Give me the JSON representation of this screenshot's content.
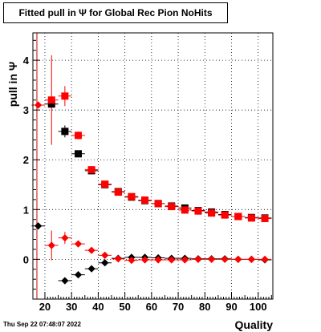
{
  "chart_data": {
    "type": "scatter",
    "title": "Fitted pull in  Ψ  for Global Rec Pion NoHits",
    "xlabel": "Quality",
    "ylabel": "pull in  Ψ",
    "xlim": [
      15.5,
      105.5
    ],
    "ylim": [
      -0.8,
      4.55
    ],
    "x_ticks": [
      20,
      30,
      40,
      50,
      60,
      70,
      80,
      90,
      100
    ],
    "y_ticks": [
      0,
      1,
      2,
      3,
      4
    ],
    "grid": true,
    "vertical_line_x": 17,
    "series": [
      {
        "marker": "square",
        "color": "#000000",
        "x": [
          22.5,
          27.5,
          32.5,
          37.5,
          42.5,
          47.5,
          52.5,
          57.5,
          62.5,
          67.5,
          72.5,
          77.5,
          82.5,
          87.5,
          92.5,
          97.5,
          102.5
        ],
        "y": [
          3.12,
          2.57,
          2.12,
          1.78,
          1.5,
          1.36,
          1.25,
          1.18,
          1.12,
          1.07,
          1.03,
          0.98,
          0.95,
          0.9,
          0.86,
          0.84,
          0.83
        ],
        "yerr": [
          0.05,
          0.12,
          0.05,
          0.04,
          0.03,
          0.03,
          0.02,
          0.02,
          0.02,
          0.02,
          0.02,
          0.02,
          0.02,
          0.02,
          0.02,
          0.02,
          0.02
        ]
      },
      {
        "marker": "square",
        "color": "#ff0000",
        "x": [
          22.5,
          27.5,
          32.5,
          37.5,
          42.5,
          47.5,
          52.5,
          57.5,
          62.5,
          67.5,
          72.5,
          77.5,
          82.5,
          87.5,
          92.5,
          97.5,
          102.5
        ],
        "y": [
          3.2,
          3.28,
          2.49,
          1.8,
          1.51,
          1.35,
          1.26,
          1.19,
          1.12,
          1.06,
          0.99,
          0.97,
          0.93,
          0.89,
          0.86,
          0.83,
          0.82
        ],
        "yerr": [
          0.9,
          0.2,
          0.08,
          0.05,
          0.03,
          0.03,
          0.02,
          0.02,
          0.02,
          0.02,
          0.02,
          0.02,
          0.02,
          0.02,
          0.02,
          0.02,
          0.02
        ]
      },
      {
        "marker": "diamond",
        "color": "#000000",
        "x": [
          17.5,
          27.5,
          32.5,
          37.5,
          42.5,
          47.5,
          52.5,
          57.5,
          62.5,
          67.5,
          72.5,
          77.5,
          82.5,
          87.5,
          92.5,
          97.5,
          102.5
        ],
        "y": [
          0.67,
          -0.43,
          -0.31,
          -0.19,
          -0.07,
          0.02,
          0.04,
          0.04,
          0.03,
          0.02,
          0.02,
          0.01,
          0.01,
          0.01,
          0.0,
          0.0,
          -0.01
        ],
        "yerr": [
          0.05,
          0.05,
          0.04,
          0.03,
          0.02,
          0.02,
          0.02,
          0.02,
          0.02,
          0.02,
          0.02,
          0.02,
          0.02,
          0.02,
          0.02,
          0.02,
          0.02
        ]
      },
      {
        "marker": "diamond",
        "color": "#ff0000",
        "x": [
          17.5,
          22.5,
          27.5,
          32.5,
          37.5,
          42.5,
          47.5,
          52.5,
          57.5,
          62.5,
          67.5,
          72.5,
          77.5,
          82.5,
          87.5,
          92.5,
          97.5,
          102.5
        ],
        "y": [
          3.1,
          0.28,
          0.43,
          0.31,
          0.18,
          0.08,
          0.01,
          -0.02,
          -0.01,
          -0.01,
          -0.01,
          -0.01,
          0.0,
          0.0,
          0.0,
          0.0,
          0.0,
          0.0
        ],
        "yerr": [
          0.05,
          0.3,
          0.12,
          0.05,
          0.04,
          0.03,
          0.02,
          0.02,
          0.02,
          0.02,
          0.02,
          0.02,
          0.02,
          0.02,
          0.02,
          0.02,
          0.02,
          0.02
        ]
      }
    ]
  },
  "footer": {
    "date": "Thu Sep 22 07:48:07 2022"
  }
}
